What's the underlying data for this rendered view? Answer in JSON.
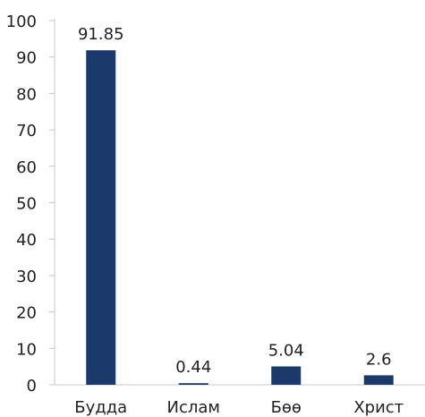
{
  "chart_data": {
    "type": "bar",
    "title": "",
    "xlabel": "",
    "ylabel": "",
    "categories": [
      "Будда",
      "Ислам",
      "Бөө",
      "Христ"
    ],
    "values": [
      91.85,
      0.44,
      5.04,
      2.6
    ],
    "data_labels": [
      "91.85",
      "0.44",
      "5.04",
      "2.6"
    ],
    "ylim": [
      0,
      100
    ],
    "yticks": [
      "0",
      "10",
      "20",
      "30",
      "40",
      "50",
      "60",
      "70",
      "80",
      "90",
      "100"
    ],
    "grid": false,
    "legend": "none",
    "colors": {
      "bar": "#1b3a6b",
      "axis": "#c8c8c8",
      "text": "#222222"
    }
  }
}
